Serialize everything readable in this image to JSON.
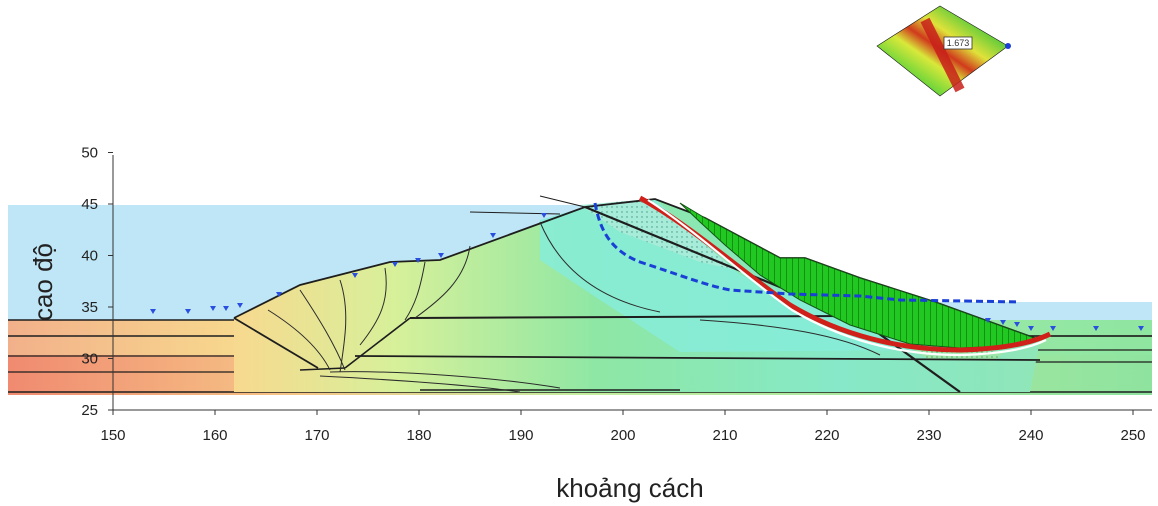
{
  "figure": {
    "factor_of_safety": "1.673",
    "xlabel": "khoảng cách",
    "ylabel": "cao độ",
    "x_ticks": [
      "150",
      "160",
      "170",
      "180",
      "190",
      "200",
      "210",
      "220",
      "230",
      "240",
      "250"
    ],
    "y_ticks": [
      "25",
      "30",
      "35",
      "40",
      "45",
      "50"
    ]
  },
  "colors": {
    "water": "#bfe6f6",
    "slip_mass": "#1ec81e",
    "slip_surface": "#d0201a",
    "phreatic_line": "#1a3fd6",
    "contour_line": "#2a2a2a",
    "foundation_warm": "#f3a07a",
    "foundation_cool": "#a8ecb0",
    "dam_core": "#86ecd8"
  }
}
